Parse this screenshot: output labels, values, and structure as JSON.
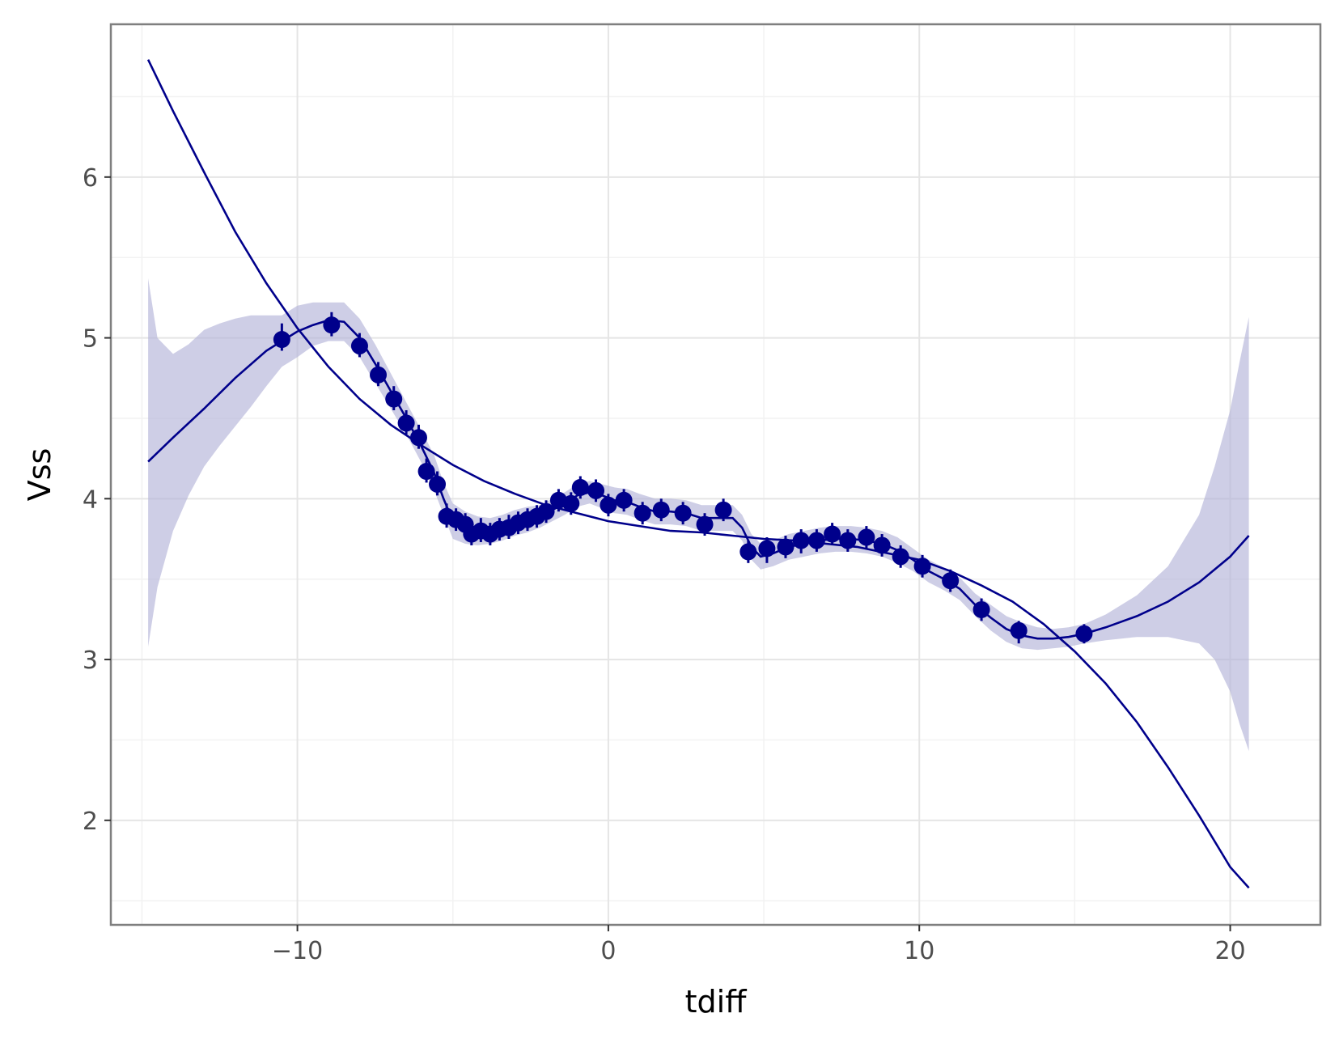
{
  "chart_data": {
    "type": "scatter",
    "title": "",
    "xlabel": "tdiff",
    "ylabel": "Vss",
    "xlim": [
      -16.0,
      22.9
    ],
    "ylim": [
      1.35,
      6.95
    ],
    "x_ticks": [
      -10,
      0,
      10,
      20
    ],
    "x_tick_labels": [
      "−10",
      "0",
      "10",
      "20"
    ],
    "y_ticks": [
      2,
      3,
      4,
      5,
      6
    ],
    "y_tick_labels": [
      "2",
      "3",
      "4",
      "5",
      "6"
    ],
    "grid": true,
    "legend": "none",
    "colors": {
      "points": "#00008b",
      "band": "#b3b3d9",
      "grid": "#e5e5e5",
      "panel_border": "#7f7f7f",
      "background": "#ffffff"
    },
    "points": [
      {
        "x": -10.5,
        "y": 4.99,
        "lo": 4.92,
        "hi": 5.09
      },
      {
        "x": -8.9,
        "y": 5.08,
        "lo": 5.01,
        "hi": 5.16
      },
      {
        "x": -8.0,
        "y": 4.95,
        "lo": 4.88,
        "hi": 5.03
      },
      {
        "x": -7.4,
        "y": 4.77,
        "lo": 4.7,
        "hi": 4.85
      },
      {
        "x": -6.9,
        "y": 4.62,
        "lo": 4.55,
        "hi": 4.7
      },
      {
        "x": -6.5,
        "y": 4.47,
        "lo": 4.4,
        "hi": 4.55
      },
      {
        "x": -6.1,
        "y": 4.38,
        "lo": 4.31,
        "hi": 4.46
      },
      {
        "x": -5.85,
        "y": 4.17,
        "lo": 4.1,
        "hi": 4.25
      },
      {
        "x": -5.5,
        "y": 4.09,
        "lo": 4.02,
        "hi": 4.17
      },
      {
        "x": -5.2,
        "y": 3.89,
        "lo": 3.82,
        "hi": 3.97
      },
      {
        "x": -4.9,
        "y": 3.87,
        "lo": 3.8,
        "hi": 3.94
      },
      {
        "x": -4.6,
        "y": 3.84,
        "lo": 3.77,
        "hi": 3.91
      },
      {
        "x": -4.4,
        "y": 3.78,
        "lo": 3.71,
        "hi": 3.85
      },
      {
        "x": -4.1,
        "y": 3.8,
        "lo": 3.73,
        "hi": 3.88
      },
      {
        "x": -3.8,
        "y": 3.78,
        "lo": 3.71,
        "hi": 3.85
      },
      {
        "x": -3.5,
        "y": 3.81,
        "lo": 3.74,
        "hi": 3.88
      },
      {
        "x": -3.2,
        "y": 3.82,
        "lo": 3.75,
        "hi": 3.9
      },
      {
        "x": -2.9,
        "y": 3.85,
        "lo": 3.78,
        "hi": 3.92
      },
      {
        "x": -2.6,
        "y": 3.87,
        "lo": 3.8,
        "hi": 3.94
      },
      {
        "x": -2.3,
        "y": 3.89,
        "lo": 3.82,
        "hi": 3.96
      },
      {
        "x": -2.0,
        "y": 3.92,
        "lo": 3.85,
        "hi": 3.99
      },
      {
        "x": -1.6,
        "y": 3.99,
        "lo": 3.92,
        "hi": 4.06
      },
      {
        "x": -1.2,
        "y": 3.97,
        "lo": 3.9,
        "hi": 4.04
      },
      {
        "x": -0.9,
        "y": 4.07,
        "lo": 4.0,
        "hi": 4.14
      },
      {
        "x": -0.4,
        "y": 4.05,
        "lo": 3.98,
        "hi": 4.12
      },
      {
        "x": 0.0,
        "y": 3.96,
        "lo": 3.89,
        "hi": 4.03
      },
      {
        "x": 0.5,
        "y": 3.99,
        "lo": 3.92,
        "hi": 4.06
      },
      {
        "x": 1.1,
        "y": 3.91,
        "lo": 3.84,
        "hi": 3.98
      },
      {
        "x": 1.7,
        "y": 3.93,
        "lo": 3.86,
        "hi": 4.0
      },
      {
        "x": 2.4,
        "y": 3.91,
        "lo": 3.84,
        "hi": 3.98
      },
      {
        "x": 3.1,
        "y": 3.84,
        "lo": 3.77,
        "hi": 3.91
      },
      {
        "x": 3.7,
        "y": 3.93,
        "lo": 3.86,
        "hi": 4.0
      },
      {
        "x": 4.5,
        "y": 3.67,
        "lo": 3.6,
        "hi": 3.74
      },
      {
        "x": 5.1,
        "y": 3.69,
        "lo": 3.6,
        "hi": 3.76
      },
      {
        "x": 5.7,
        "y": 3.7,
        "lo": 3.63,
        "hi": 3.77
      },
      {
        "x": 6.2,
        "y": 3.74,
        "lo": 3.66,
        "hi": 3.81
      },
      {
        "x": 6.7,
        "y": 3.74,
        "lo": 3.67,
        "hi": 3.81
      },
      {
        "x": 7.2,
        "y": 3.78,
        "lo": 3.71,
        "hi": 3.85
      },
      {
        "x": 7.7,
        "y": 3.74,
        "lo": 3.67,
        "hi": 3.81
      },
      {
        "x": 8.3,
        "y": 3.76,
        "lo": 3.69,
        "hi": 3.83
      },
      {
        "x": 8.8,
        "y": 3.71,
        "lo": 3.64,
        "hi": 3.78
      },
      {
        "x": 9.4,
        "y": 3.64,
        "lo": 3.57,
        "hi": 3.71
      },
      {
        "x": 10.1,
        "y": 3.58,
        "lo": 3.51,
        "hi": 3.65
      },
      {
        "x": 11.0,
        "y": 3.49,
        "lo": 3.42,
        "hi": 3.56
      },
      {
        "x": 12.0,
        "y": 3.31,
        "lo": 3.24,
        "hi": 3.38
      },
      {
        "x": 13.2,
        "y": 3.18,
        "lo": 3.1,
        "hi": 3.24
      },
      {
        "x": 15.3,
        "y": 3.16,
        "lo": 3.1,
        "hi": 3.22
      }
    ],
    "series": [
      {
        "kind": "polynomial-fit-line",
        "x": [
          -14.8,
          -14.0,
          -13.0,
          -12.0,
          -11.0,
          -10.0,
          -9.0,
          -8.0,
          -7.0,
          -6.0,
          -5.0,
          -4.0,
          -3.0,
          -2.0,
          -1.0,
          0.0,
          1.0,
          2.0,
          3.0,
          4.0,
          5.0,
          6.0,
          7.0,
          8.0,
          9.0,
          10.0,
          11.0,
          12.0,
          13.0,
          14.0,
          15.0,
          16.0,
          17.0,
          18.0,
          19.0,
          20.0,
          20.6
        ],
        "y": [
          6.73,
          6.41,
          6.03,
          5.66,
          5.34,
          5.06,
          4.82,
          4.62,
          4.46,
          4.33,
          4.21,
          4.11,
          4.03,
          3.96,
          3.91,
          3.86,
          3.83,
          3.8,
          3.79,
          3.77,
          3.75,
          3.74,
          3.72,
          3.7,
          3.66,
          3.62,
          3.55,
          3.46,
          3.36,
          3.22,
          3.05,
          2.85,
          2.61,
          2.33,
          2.03,
          1.71,
          1.58
        ]
      },
      {
        "kind": "smooth-line",
        "x": [
          -14.8,
          -14.0,
          -13.0,
          -12.0,
          -11.0,
          -10.5,
          -10.0,
          -9.5,
          -9.0,
          -8.5,
          -8.0,
          -7.5,
          -7.0,
          -6.5,
          -6.0,
          -5.6,
          -5.3,
          -5.0,
          -4.6,
          -4.2,
          -3.8,
          -3.4,
          -3.0,
          -2.6,
          -2.2,
          -1.8,
          -1.4,
          -1.0,
          -0.6,
          -0.2,
          0.2,
          0.6,
          1.0,
          1.5,
          2.0,
          2.5,
          3.0,
          3.5,
          4.0,
          4.3,
          4.6,
          4.9,
          5.3,
          5.8,
          6.3,
          6.8,
          7.3,
          7.8,
          8.3,
          8.8,
          9.3,
          9.8,
          10.3,
          10.8,
          11.3,
          11.8,
          12.3,
          12.8,
          13.3,
          13.8,
          14.3,
          14.8,
          15.3,
          16.0,
          17.0,
          18.0,
          19.0,
          20.0,
          20.6
        ],
        "y": [
          4.23,
          4.38,
          4.56,
          4.75,
          4.92,
          4.98,
          5.04,
          5.08,
          5.11,
          5.1,
          5.0,
          4.84,
          4.67,
          4.5,
          4.32,
          4.16,
          4.0,
          3.86,
          3.82,
          3.8,
          3.8,
          3.82,
          3.85,
          3.87,
          3.89,
          3.93,
          3.97,
          4.02,
          4.04,
          4.02,
          3.99,
          3.98,
          3.95,
          3.92,
          3.92,
          3.91,
          3.88,
          3.88,
          3.88,
          3.82,
          3.7,
          3.64,
          3.66,
          3.7,
          3.72,
          3.74,
          3.75,
          3.75,
          3.74,
          3.72,
          3.68,
          3.62,
          3.55,
          3.5,
          3.44,
          3.34,
          3.26,
          3.19,
          3.15,
          3.13,
          3.13,
          3.14,
          3.16,
          3.2,
          3.27,
          3.36,
          3.48,
          3.64,
          3.77
        ]
      }
    ],
    "ribbon": {
      "x": [
        -14.8,
        -14.5,
        -14.0,
        -13.5,
        -13.0,
        -12.5,
        -12.0,
        -11.5,
        -11.0,
        -10.5,
        -10.0,
        -9.5,
        -9.0,
        -8.5,
        -8.0,
        -7.5,
        -7.0,
        -6.5,
        -6.0,
        -5.6,
        -5.3,
        -5.0,
        -4.6,
        -4.2,
        -3.8,
        -3.4,
        -3.0,
        -2.6,
        -2.2,
        -1.8,
        -1.4,
        -1.0,
        -0.6,
        -0.2,
        0.2,
        0.6,
        1.0,
        1.5,
        2.0,
        2.5,
        3.0,
        3.5,
        4.0,
        4.3,
        4.6,
        4.9,
        5.3,
        5.8,
        6.3,
        6.8,
        7.3,
        7.8,
        8.3,
        8.8,
        9.3,
        9.8,
        10.3,
        10.8,
        11.3,
        11.8,
        12.3,
        12.8,
        13.3,
        13.8,
        14.3,
        14.8,
        15.3,
        16.0,
        17.0,
        18.0,
        19.0,
        19.5,
        20.0,
        20.3,
        20.6
      ],
      "lower": [
        3.08,
        3.45,
        3.8,
        4.02,
        4.2,
        4.33,
        4.45,
        4.57,
        4.7,
        4.82,
        4.88,
        4.95,
        4.98,
        4.98,
        4.88,
        4.72,
        4.56,
        4.4,
        4.22,
        4.05,
        3.9,
        3.75,
        3.72,
        3.71,
        3.72,
        3.74,
        3.77,
        3.79,
        3.82,
        3.86,
        3.9,
        3.95,
        3.97,
        3.94,
        3.91,
        3.9,
        3.87,
        3.84,
        3.84,
        3.83,
        3.8,
        3.8,
        3.8,
        3.74,
        3.62,
        3.56,
        3.58,
        3.62,
        3.64,
        3.66,
        3.67,
        3.67,
        3.66,
        3.64,
        3.6,
        3.55,
        3.48,
        3.43,
        3.37,
        3.27,
        3.18,
        3.11,
        3.07,
        3.06,
        3.07,
        3.08,
        3.1,
        3.12,
        3.14,
        3.14,
        3.1,
        3.0,
        2.8,
        2.6,
        2.43
      ],
      "upper": [
        5.37,
        5.0,
        4.9,
        4.96,
        5.05,
        5.09,
        5.12,
        5.14,
        5.14,
        5.14,
        5.2,
        5.22,
        5.22,
        5.22,
        5.12,
        4.96,
        4.78,
        4.6,
        4.42,
        4.27,
        4.1,
        3.97,
        3.92,
        3.89,
        3.88,
        3.9,
        3.93,
        3.95,
        3.96,
        4.0,
        4.04,
        4.09,
        4.11,
        4.09,
        4.07,
        4.06,
        4.03,
        4.0,
        4.0,
        3.99,
        3.96,
        3.96,
        3.96,
        3.9,
        3.78,
        3.72,
        3.74,
        3.78,
        3.8,
        3.82,
        3.83,
        3.83,
        3.82,
        3.8,
        3.76,
        3.69,
        3.62,
        3.57,
        3.51,
        3.41,
        3.34,
        3.27,
        3.23,
        3.2,
        3.19,
        3.2,
        3.22,
        3.28,
        3.4,
        3.58,
        3.9,
        4.2,
        4.55,
        4.85,
        5.13
      ]
    }
  }
}
